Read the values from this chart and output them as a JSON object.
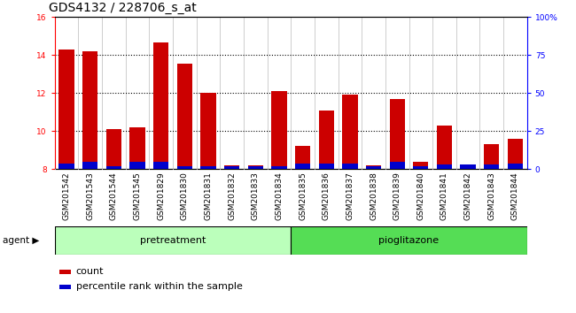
{
  "title": "GDS4132 / 228706_s_at",
  "samples": [
    "GSM201542",
    "GSM201543",
    "GSM201544",
    "GSM201545",
    "GSM201829",
    "GSM201830",
    "GSM201831",
    "GSM201832",
    "GSM201833",
    "GSM201834",
    "GSM201835",
    "GSM201836",
    "GSM201837",
    "GSM201838",
    "GSM201839",
    "GSM201840",
    "GSM201841",
    "GSM201842",
    "GSM201843",
    "GSM201844"
  ],
  "count_values": [
    14.3,
    14.2,
    10.1,
    10.2,
    14.65,
    13.55,
    12.0,
    8.2,
    8.2,
    12.1,
    9.2,
    11.1,
    11.9,
    8.2,
    11.7,
    8.4,
    10.3,
    8.2,
    9.3,
    9.6
  ],
  "percentile_values": [
    3.5,
    5.0,
    2.0,
    4.5,
    4.5,
    2.0,
    2.0,
    2.0,
    2.0,
    2.0,
    3.5,
    3.5,
    3.5,
    2.0,
    4.5,
    2.0,
    3.0,
    3.0,
    3.0,
    3.5
  ],
  "ylim_left": [
    8,
    16
  ],
  "ylim_right": [
    0,
    100
  ],
  "yticks_left": [
    8,
    10,
    12,
    14,
    16
  ],
  "yticks_right": [
    0,
    25,
    50,
    75,
    100
  ],
  "ytick_labels_right": [
    "0",
    "25",
    "50",
    "75",
    "100%"
  ],
  "bar_color_count": "#cc0000",
  "bar_color_percentile": "#0000cc",
  "bar_width": 0.65,
  "background_chart": "#ffffff",
  "pretreatment_color": "#bbffbb",
  "pioglitazone_color": "#55dd55",
  "separator_color": "#555555",
  "xlabel_bg_color": "#cccccc",
  "legend_count": "count",
  "legend_percentile": "percentile rank within the sample",
  "title_fontsize": 10,
  "tick_fontsize": 6.5,
  "group_fontsize": 8,
  "legend_fontsize": 8
}
